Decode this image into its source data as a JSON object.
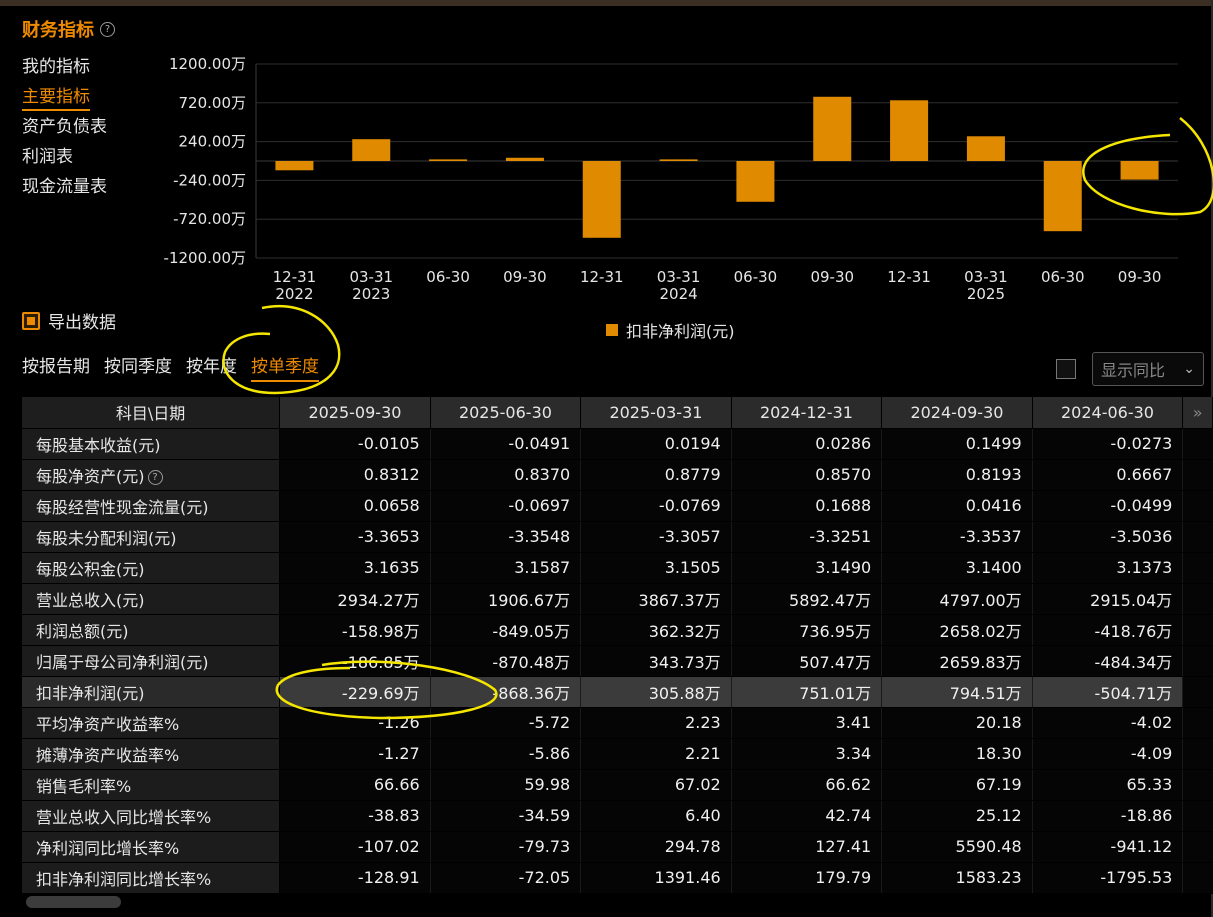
{
  "title": "财务指标",
  "sidebar": {
    "items": [
      {
        "label": "我的指标",
        "active": false
      },
      {
        "label": "主要指标",
        "active": true
      },
      {
        "label": "资产负债表",
        "active": false
      },
      {
        "label": "利润表",
        "active": false
      },
      {
        "label": "现金流量表",
        "active": false
      }
    ]
  },
  "chart_data": {
    "type": "bar",
    "ylabel": "",
    "y_ticks": [
      "1200.00万",
      "720.00万",
      "240.00万",
      "-240.00万",
      "-720.00万",
      "-1200.00万"
    ],
    "ylim": [
      -1200,
      1200
    ],
    "categories": [
      {
        "line1": "12-31",
        "line2": "2022"
      },
      {
        "line1": "03-31",
        "line2": "2023"
      },
      {
        "line1": "06-30",
        "line2": ""
      },
      {
        "line1": "09-30",
        "line2": ""
      },
      {
        "line1": "12-31",
        "line2": ""
      },
      {
        "line1": "03-31",
        "line2": "2024"
      },
      {
        "line1": "06-30",
        "line2": ""
      },
      {
        "line1": "09-30",
        "line2": ""
      },
      {
        "line1": "12-31",
        "line2": ""
      },
      {
        "line1": "03-31",
        "line2": "2025"
      },
      {
        "line1": "06-30",
        "line2": ""
      },
      {
        "line1": "09-30",
        "line2": ""
      }
    ],
    "series": [
      {
        "name": "扣非净利润(元)",
        "values": [
          -115,
          270,
          20,
          40,
          -950,
          20,
          -504.71,
          794.51,
          751.01,
          305.88,
          -868.36,
          -229.69
        ]
      }
    ],
    "color": "#e08a00",
    "grid": true,
    "legend_position": "bottom-center"
  },
  "export_label": "导出数据",
  "period_tabs": [
    {
      "label": "按报告期",
      "active": false
    },
    {
      "label": "按同季度",
      "active": false
    },
    {
      "label": "按年度",
      "active": false
    },
    {
      "label": "按单季度",
      "active": true
    }
  ],
  "yoy_select": {
    "placeholder": "显示同比"
  },
  "table": {
    "header_first": "科目\\日期",
    "columns": [
      "2025-09-30",
      "2025-06-30",
      "2025-03-31",
      "2024-12-31",
      "2024-09-30",
      "2024-06-30"
    ],
    "more_icon": "»",
    "rows": [
      {
        "label": "每股基本收益(元)",
        "help": false,
        "values": [
          "-0.0105",
          "-0.0491",
          "0.0194",
          "0.0286",
          "0.1499",
          "-0.0273"
        ]
      },
      {
        "label": "每股净资产(元)",
        "help": true,
        "values": [
          "0.8312",
          "0.8370",
          "0.8779",
          "0.8570",
          "0.8193",
          "0.6667"
        ]
      },
      {
        "label": "每股经营性现金流量(元)",
        "help": false,
        "values": [
          "0.0658",
          "-0.0697",
          "-0.0769",
          "0.1688",
          "0.0416",
          "-0.0499"
        ]
      },
      {
        "label": "每股未分配利润(元)",
        "help": false,
        "values": [
          "-3.3653",
          "-3.3548",
          "-3.3057",
          "-3.3251",
          "-3.3537",
          "-3.5036"
        ]
      },
      {
        "label": "每股公积金(元)",
        "help": false,
        "values": [
          "3.1635",
          "3.1587",
          "3.1505",
          "3.1490",
          "3.1400",
          "3.1373"
        ]
      },
      {
        "label": "营业总收入(元)",
        "help": false,
        "values": [
          "2934.27万",
          "1906.67万",
          "3867.37万",
          "5892.47万",
          "4797.00万",
          "2915.04万"
        ]
      },
      {
        "label": "利润总额(元)",
        "help": false,
        "values": [
          "-158.98万",
          "-849.05万",
          "362.32万",
          "736.95万",
          "2658.02万",
          "-418.76万"
        ]
      },
      {
        "label": "归属于母公司净利润(元)",
        "help": false,
        "values": [
          "-186.85万",
          "-870.48万",
          "343.73万",
          "507.47万",
          "2659.83万",
          "-484.34万"
        ]
      },
      {
        "label": "扣非净利润(元)",
        "help": false,
        "highlight": true,
        "values": [
          "-229.69万",
          "-868.36万",
          "305.88万",
          "751.01万",
          "794.51万",
          "-504.71万"
        ]
      },
      {
        "label": "平均净资产收益率%",
        "help": false,
        "values": [
          "-1.26",
          "-5.72",
          "2.23",
          "3.41",
          "20.18",
          "-4.02"
        ]
      },
      {
        "label": "摊薄净资产收益率%",
        "help": false,
        "values": [
          "-1.27",
          "-5.86",
          "2.21",
          "3.34",
          "18.30",
          "-4.09"
        ]
      },
      {
        "label": "销售毛利率%",
        "help": false,
        "values": [
          "66.66",
          "59.98",
          "67.02",
          "66.62",
          "67.19",
          "65.33"
        ]
      },
      {
        "label": "营业总收入同比增长率%",
        "help": false,
        "values": [
          "-38.83",
          "-34.59",
          "6.40",
          "42.74",
          "25.12",
          "-18.86"
        ]
      },
      {
        "label": "净利润同比增长率%",
        "help": false,
        "values": [
          "-107.02",
          "-79.73",
          "294.78",
          "127.41",
          "5590.48",
          "-941.12"
        ]
      },
      {
        "label": "扣非净利润同比增长率%",
        "help": false,
        "values": [
          "-128.91",
          "-72.05",
          "1391.46",
          "179.79",
          "1583.23",
          "-1795.53"
        ]
      }
    ]
  },
  "annotation_color": "#f5e600"
}
